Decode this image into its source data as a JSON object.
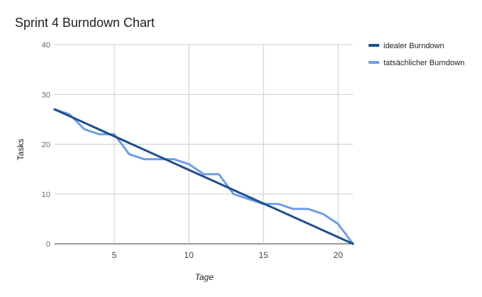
{
  "chart_data": {
    "type": "line",
    "title": "Sprint 4 Burndown Chart",
    "xlabel": "Tage",
    "ylabel": "Tasks",
    "xlim": [
      1,
      21
    ],
    "ylim": [
      0,
      40
    ],
    "x_ticks": [
      5,
      10,
      15,
      20
    ],
    "y_ticks": [
      0,
      10,
      20,
      30,
      40
    ],
    "grid": true,
    "legend_position": "right",
    "series": [
      {
        "name": "idealer Burndown",
        "color": "#1f4e8c",
        "x": [
          1,
          21
        ],
        "values": [
          27,
          0
        ]
      },
      {
        "name": "tatsächlicher Burndown",
        "color": "#6d9eeb",
        "x": [
          1,
          2,
          3,
          4,
          5,
          6,
          7,
          8,
          9,
          10,
          11,
          12,
          13,
          14,
          15,
          16,
          17,
          18,
          19,
          20,
          21
        ],
        "values": [
          27,
          26,
          23,
          22,
          22,
          18,
          17,
          17,
          17,
          16,
          14,
          14,
          10,
          9,
          8,
          8,
          7,
          7,
          6,
          4,
          0
        ]
      }
    ]
  }
}
